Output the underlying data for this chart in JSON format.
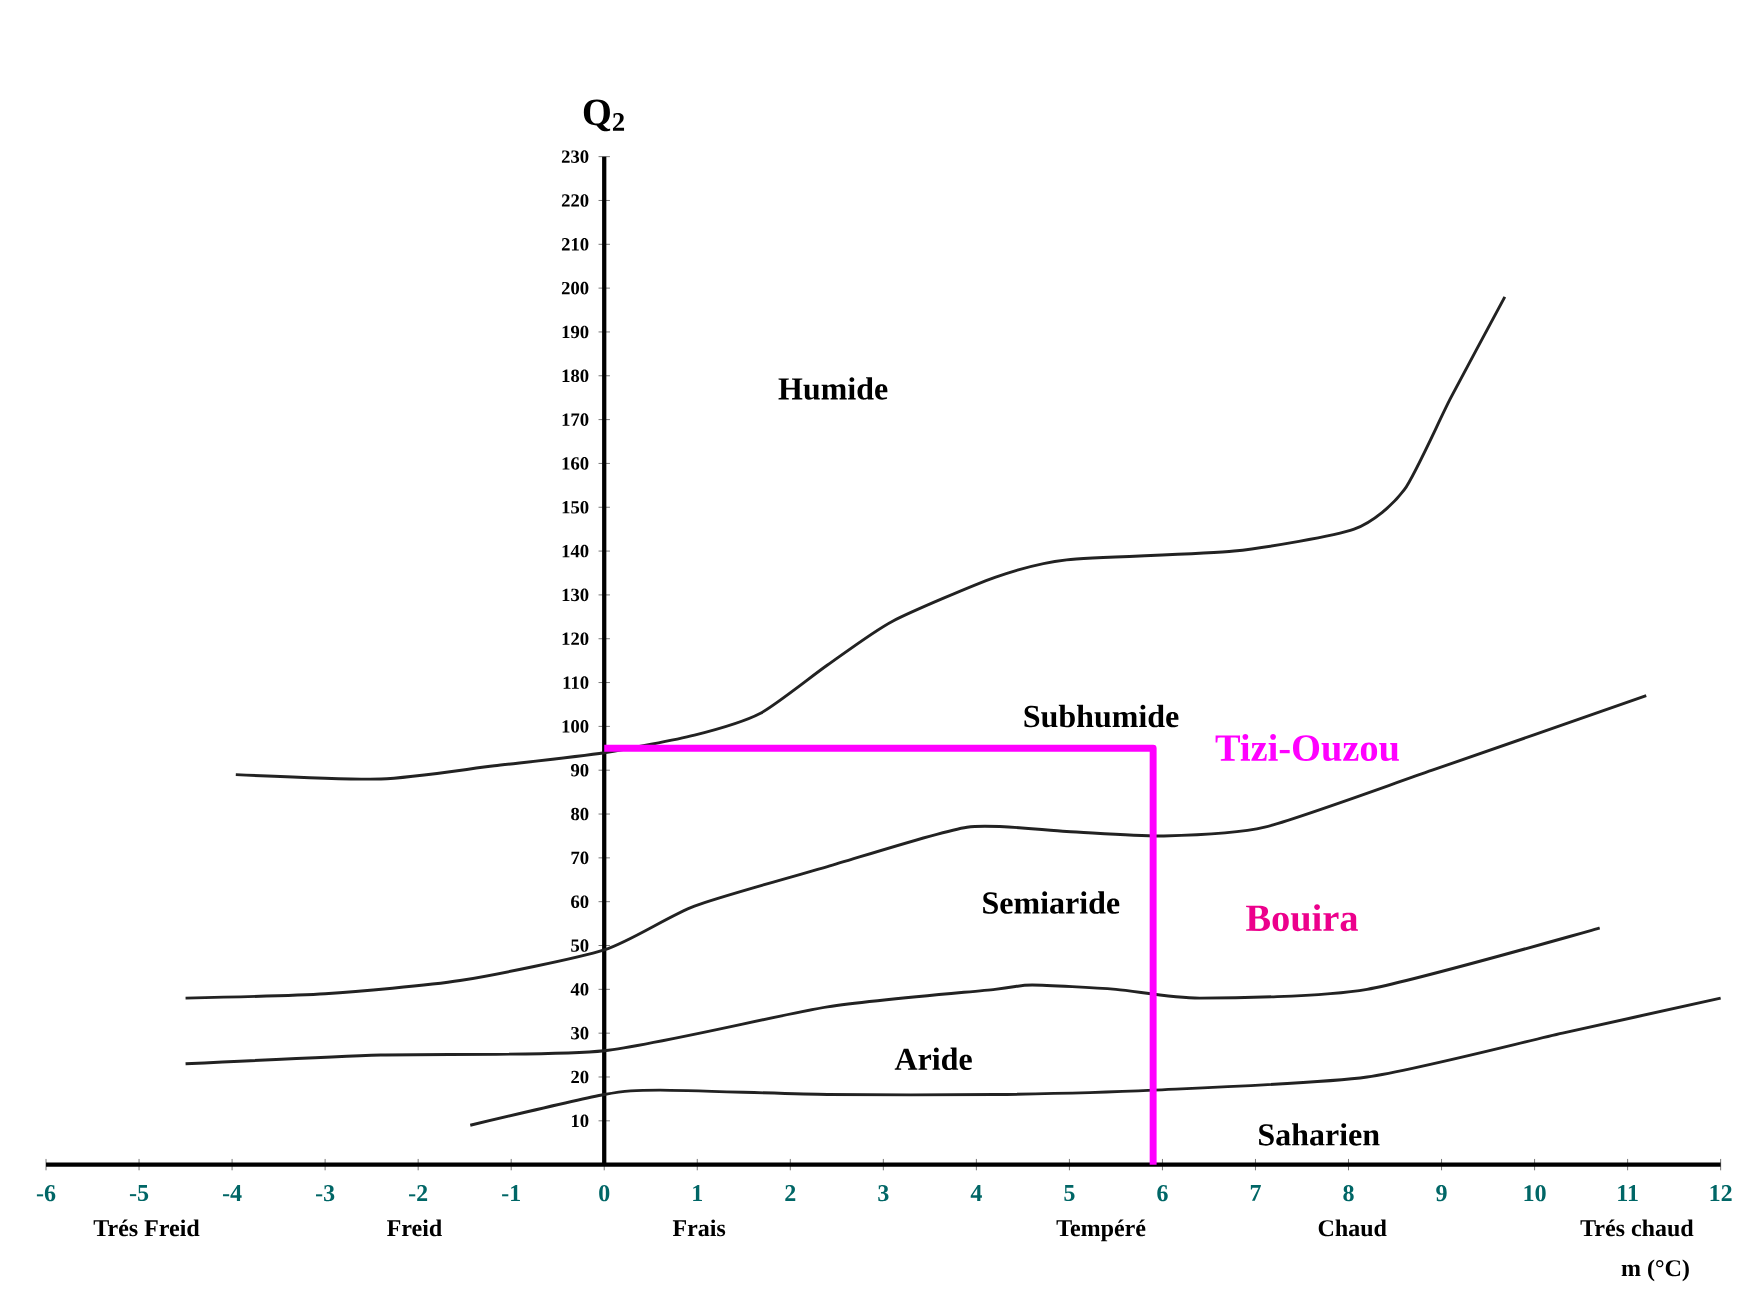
{
  "chart_data": {
    "type": "line",
    "xlabel": "m (°C)",
    "ylabel": "Q$_{2}$",
    "xlim": [
      -6,
      12
    ],
    "ylim": [
      0,
      230
    ],
    "xticks": [
      -6,
      -5,
      -4,
      -3,
      -2,
      -1,
      0,
      1,
      2,
      3,
      4,
      5,
      6,
      7,
      8,
      9,
      10,
      11,
      12
    ],
    "yticks": [
      10,
      20,
      30,
      40,
      50,
      60,
      70,
      80,
      90,
      100,
      110,
      120,
      130,
      140,
      150,
      160,
      170,
      180,
      190,
      200,
      210,
      220,
      230
    ],
    "series": [
      {
        "color": "#222222",
        "x": [
          -3.96,
          -2.4,
          -1.18,
          0,
          0.97,
          1.68,
          2.4,
          3.1,
          4.2,
          4.97,
          6.77,
          8.06,
          8.6,
          9.1,
          9.68
        ],
        "values": [
          89,
          88,
          91,
          94,
          98,
          103,
          114,
          124,
          134,
          138,
          140,
          145,
          154,
          175,
          198
        ]
      },
      {
        "color": "#222222",
        "x": [
          -4.5,
          -3,
          -1.55,
          0,
          0.97,
          2.4,
          3.9,
          4.97,
          6,
          7.1,
          8.9,
          11.2
        ],
        "values": [
          38,
          39,
          42,
          49,
          59,
          68,
          77,
          76,
          75,
          77,
          90,
          107
        ]
      },
      {
        "color": "#222222",
        "x": [
          -4.5,
          -2.4,
          0,
          2.4,
          4.2,
          4.6,
          5.5,
          6.4,
          8.2,
          10.7
        ],
        "values": [
          23,
          25,
          26,
          36,
          40,
          41,
          40,
          38,
          40,
          54
        ]
      },
      {
        "color": "#222222",
        "x": [
          -1.44,
          0,
          0.6,
          2.4,
          4.2,
          5.9,
          8.2,
          10.3,
          12
        ],
        "values": [
          9,
          16,
          17,
          16,
          16,
          17,
          20,
          30,
          38
        ]
      },
      {
        "name": "Tizi-Ouzou",
        "color": "#ff00ff",
        "x": [
          0,
          5.9,
          5.9
        ],
        "values": [
          95,
          95,
          0
        ]
      }
    ],
    "annotations": [
      "Humide",
      "Subhumide",
      "Semiaride",
      "Aride",
      "Saharien",
      "Bouira",
      "Trés  Freid",
      "Freid",
      "Frais",
      "Tempéré",
      "Chaud",
      "Trés chaud"
    ]
  }
}
